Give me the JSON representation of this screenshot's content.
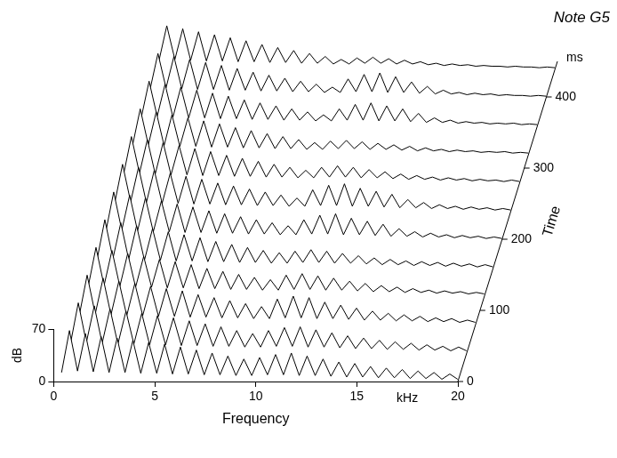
{
  "chart_data": {
    "type": "line",
    "title": "Note G5",
    "x_label": "Frequency",
    "x_unit": "kHz",
    "y_label": "dB",
    "z_label": "Time",
    "z_unit": "ms",
    "color": "#000000",
    "grid": false,
    "xlim": [
      0,
      20
    ],
    "xticks": [
      0,
      5,
      10,
      15,
      20
    ],
    "ylim": [
      0,
      70
    ],
    "yticks": [
      0,
      70
    ],
    "zlim": [
      0,
      450
    ],
    "zticks": [
      0,
      100,
      200,
      300,
      400
    ],
    "x": [
      0.39,
      0.78,
      1.18,
      1.57,
      1.96,
      2.35,
      2.74,
      3.14,
      3.53,
      3.92,
      4.31,
      4.7,
      5.1,
      5.49,
      5.88,
      6.27,
      6.66,
      7.06,
      7.45,
      7.84,
      8.23,
      8.62,
      9.02,
      9.41,
      9.8,
      10.19,
      10.58,
      10.98,
      11.37,
      11.76,
      12.15,
      12.54,
      12.94,
      13.33,
      13.72,
      14.11,
      14.5,
      14.9,
      15.29,
      15.68,
      16.07,
      16.46,
      16.86,
      17.25,
      17.64,
      18.03,
      18.42,
      18.82,
      19.21,
      19.6,
      19.99
    ],
    "series": [
      {
        "time": 0,
        "values": [
          12,
          68,
          14,
          64,
          13,
          60,
          12,
          58,
          12,
          55,
          11,
          52,
          11,
          50,
          10,
          46,
          10,
          42,
          9,
          38,
          9,
          34,
          8,
          30,
          8,
          32,
          9,
          36,
          9,
          38,
          8,
          34,
          8,
          30,
          7,
          26,
          6,
          24,
          6,
          20,
          5,
          18,
          5,
          16,
          4,
          14,
          4,
          12,
          3,
          10,
          3
        ]
      },
      {
        "time": 40,
        "values": [
          12,
          67,
          14,
          63,
          13,
          59,
          12,
          56,
          12,
          53,
          11,
          50,
          11,
          47,
          10,
          43,
          10,
          39,
          9,
          35,
          9,
          30,
          8,
          26,
          8,
          30,
          9,
          34,
          9,
          35,
          8,
          31,
          8,
          27,
          7,
          23,
          6,
          20,
          6,
          17,
          5,
          15,
          5,
          13,
          4,
          11,
          4,
          9,
          3,
          8,
          3
        ]
      },
      {
        "time": 80,
        "values": [
          12,
          66,
          14,
          62,
          13,
          58,
          12,
          55,
          12,
          51,
          11,
          48,
          11,
          45,
          10,
          40,
          10,
          36,
          9,
          32,
          9,
          28,
          8,
          24,
          8,
          34,
          9,
          38,
          9,
          36,
          8,
          30,
          8,
          26,
          7,
          22,
          6,
          18,
          6,
          15,
          5,
          13,
          5,
          11,
          4,
          9,
          4,
          8,
          3,
          6,
          3
        ]
      },
      {
        "time": 120,
        "values": [
          12,
          65,
          14,
          61,
          13,
          57,
          12,
          53,
          12,
          49,
          11,
          46,
          11,
          42,
          10,
          37,
          10,
          33,
          9,
          29,
          9,
          25,
          8,
          22,
          8,
          28,
          9,
          30,
          9,
          27,
          8,
          24,
          8,
          20,
          7,
          17,
          6,
          14,
          6,
          12,
          5,
          10,
          5,
          8,
          4,
          7,
          4,
          6,
          3,
          5,
          3
        ]
      },
      {
        "time": 160,
        "values": [
          10,
          64,
          12,
          60,
          11,
          56,
          10,
          52,
          10,
          48,
          9,
          44,
          9,
          40,
          8,
          35,
          8,
          31,
          7,
          27,
          7,
          23,
          6,
          20,
          6,
          22,
          7,
          24,
          7,
          22,
          6,
          19,
          6,
          16,
          5,
          13,
          4,
          11,
          4,
          9,
          3,
          8,
          3,
          7,
          2,
          6,
          2,
          5,
          1,
          4,
          1
        ]
      },
      {
        "time": 200,
        "values": [
          10,
          63,
          12,
          59,
          11,
          55,
          10,
          51,
          10,
          47,
          9,
          43,
          9,
          38,
          8,
          34,
          8,
          30,
          7,
          26,
          7,
          22,
          6,
          18,
          6,
          26,
          7,
          32,
          7,
          34,
          6,
          28,
          6,
          24,
          5,
          20,
          4,
          14,
          4,
          10,
          3,
          8,
          3,
          6,
          2,
          5,
          2,
          4,
          1,
          3,
          1
        ]
      },
      {
        "time": 240,
        "values": [
          10,
          62,
          12,
          58,
          11,
          54,
          10,
          50,
          10,
          46,
          9,
          42,
          9,
          37,
          8,
          33,
          8,
          29,
          7,
          25,
          7,
          21,
          6,
          17,
          6,
          28,
          7,
          34,
          7,
          36,
          6,
          30,
          6,
          26,
          5,
          22,
          4,
          15,
          4,
          11,
          3,
          8,
          3,
          6,
          2,
          5,
          2,
          4,
          1,
          3,
          1
        ]
      },
      {
        "time": 280,
        "values": [
          10,
          61,
          12,
          57,
          11,
          53,
          10,
          49,
          10,
          45,
          9,
          41,
          9,
          36,
          8,
          32,
          8,
          28,
          7,
          24,
          7,
          20,
          6,
          16,
          6,
          20,
          7,
          22,
          7,
          20,
          6,
          17,
          6,
          14,
          5,
          11,
          4,
          9,
          4,
          7,
          3,
          6,
          3,
          5,
          2,
          4,
          2,
          3,
          1,
          3,
          1
        ]
      },
      {
        "time": 320,
        "values": [
          10,
          60,
          12,
          56,
          11,
          52,
          10,
          48,
          10,
          44,
          9,
          40,
          9,
          35,
          8,
          31,
          8,
          27,
          7,
          23,
          7,
          19,
          6,
          15,
          6,
          17,
          7,
          18,
          7,
          16,
          6,
          14,
          6,
          12,
          5,
          10,
          4,
          8,
          4,
          6,
          3,
          5,
          3,
          4,
          2,
          3,
          2,
          3,
          1,
          2,
          1
        ]
      },
      {
        "time": 360,
        "values": [
          10,
          59,
          12,
          55,
          11,
          51,
          10,
          47,
          10,
          43,
          9,
          39,
          9,
          34,
          8,
          30,
          8,
          26,
          7,
          22,
          7,
          18,
          6,
          14,
          6,
          22,
          7,
          28,
          7,
          30,
          6,
          26,
          6,
          22,
          5,
          16,
          4,
          10,
          4,
          7,
          3,
          5,
          3,
          4,
          2,
          3,
          2,
          3,
          1,
          2,
          1
        ]
      },
      {
        "time": 400,
        "values": [
          10,
          58,
          12,
          54,
          11,
          50,
          10,
          46,
          10,
          42,
          9,
          38,
          9,
          33,
          8,
          29,
          8,
          25,
          7,
          21,
          7,
          17,
          6,
          13,
          6,
          24,
          7,
          30,
          7,
          32,
          6,
          27,
          6,
          20,
          5,
          14,
          4,
          9,
          4,
          6,
          3,
          5,
          3,
          4,
          2,
          3,
          2,
          2,
          1,
          2,
          1
        ]
      },
      {
        "time": 440,
        "values": [
          10,
          57,
          12,
          53,
          11,
          49,
          10,
          45,
          10,
          41,
          9,
          37,
          9,
          32,
          8,
          28,
          8,
          24,
          7,
          20,
          7,
          16,
          6,
          12,
          6,
          14,
          7,
          15,
          7,
          13,
          6,
          11,
          6,
          9,
          5,
          7,
          4,
          6,
          4,
          5,
          3,
          4,
          3,
          3,
          2,
          3,
          2,
          2,
          1,
          2,
          1
        ]
      }
    ]
  }
}
